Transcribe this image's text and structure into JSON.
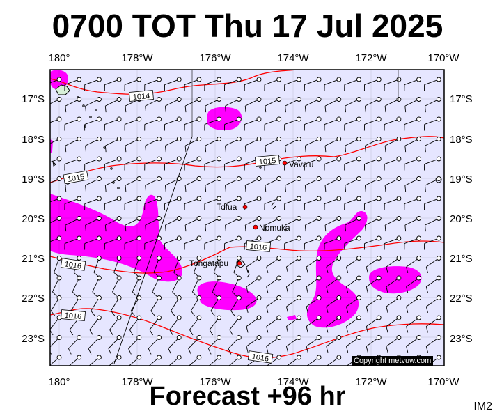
{
  "title": "0700 TOT Thu 17 Jul 2025",
  "footer": "Forecast +96 hr",
  "image_id": "IM2",
  "copyright": "Copyright metvuw.com",
  "colors": {
    "ocean": "#e6e6ff",
    "rain": "#ff00ff",
    "isobar": "#ff0000",
    "place_dot": "#ff0000"
  },
  "lon_labels": [
    "180°",
    "178°W",
    "176°W",
    "174°W",
    "172°W",
    "170°W"
  ],
  "lat_labels": [
    "17°S",
    "18°S",
    "19°S",
    "20°S",
    "21°S",
    "22°S",
    "23°S"
  ],
  "places": [
    {
      "name": "Vava'u"
    },
    {
      "name": "Tofua"
    },
    {
      "name": "Nomuka"
    },
    {
      "name": "Tongatapu"
    }
  ],
  "isobar_labels": [
    "1014",
    "1015",
    "1015",
    "1016",
    "1016",
    "1016",
    "1016",
    "1016"
  ]
}
